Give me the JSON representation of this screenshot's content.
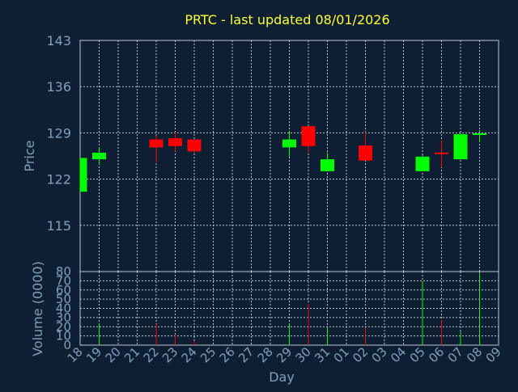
{
  "chart_data": [
    {
      "type": "candlestick",
      "title": "PRTC - last updated 08/01/2026",
      "ylabel": "Price",
      "ylim": [
        108,
        143
      ],
      "yticks": [
        115,
        122,
        129,
        136,
        143
      ],
      "grid": true,
      "colors": {
        "up": "#00ff00",
        "down": "#ff0000",
        "title": "#ffff33",
        "axis_text": "#7f9fbf",
        "background": "#0f1f33"
      },
      "categories": [
        "18",
        "19",
        "20",
        "21",
        "22",
        "23",
        "24",
        "25",
        "26",
        "27",
        "28",
        "29",
        "30",
        "31",
        "01",
        "02",
        "03",
        "04",
        "05",
        "06",
        "07",
        "08",
        "09"
      ],
      "candles": [
        {
          "day": "18",
          "open": 120.1,
          "high": 125.2,
          "low": 120.1,
          "close": 125.2
        },
        {
          "day": "19",
          "open": 125.0,
          "high": 126.8,
          "low": 124.2,
          "close": 126.0
        },
        {
          "day": "22",
          "open": 128.0,
          "high": 128.6,
          "low": 124.5,
          "close": 126.8
        },
        {
          "day": "23",
          "open": 128.2,
          "high": 129.1,
          "low": 126.2,
          "close": 127.0
        },
        {
          "day": "24",
          "open": 128.0,
          "high": 128.0,
          "low": 126.0,
          "close": 126.2
        },
        {
          "day": "29",
          "open": 126.8,
          "high": 129.2,
          "low": 125.4,
          "close": 128.0
        },
        {
          "day": "30",
          "open": 130.0,
          "high": 130.0,
          "low": 126.0,
          "close": 127.0
        },
        {
          "day": "31",
          "open": 123.2,
          "high": 126.0,
          "low": 123.2,
          "close": 125.0
        },
        {
          "day": "02",
          "open": 127.1,
          "high": 129.2,
          "low": 124.8,
          "close": 124.8
        },
        {
          "day": "05",
          "open": 123.2,
          "high": 125.6,
          "low": 123.2,
          "close": 125.4
        },
        {
          "day": "06",
          "open": 125.9,
          "high": 127.8,
          "low": 123.8,
          "close": 125.7
        },
        {
          "day": "07",
          "open": 125.0,
          "high": 129.0,
          "low": 125.0,
          "close": 128.8
        },
        {
          "day": "08",
          "open": 128.6,
          "high": 129.4,
          "low": 127.6,
          "close": 128.8
        }
      ]
    },
    {
      "type": "bar",
      "ylabel": "Volume (0000)",
      "xlabel": "Day",
      "ylim": [
        0,
        80
      ],
      "yticks": [
        0,
        10,
        20,
        30,
        40,
        50,
        60,
        70,
        80
      ],
      "grid": true,
      "categories": [
        "18",
        "19",
        "20",
        "21",
        "22",
        "23",
        "24",
        "25",
        "26",
        "27",
        "28",
        "29",
        "30",
        "31",
        "01",
        "02",
        "03",
        "04",
        "05",
        "06",
        "07",
        "08",
        "09"
      ],
      "bars": [
        {
          "day": "19",
          "value": 24,
          "direction": "up"
        },
        {
          "day": "22",
          "value": 23,
          "direction": "down"
        },
        {
          "day": "23",
          "value": 11,
          "direction": "down"
        },
        {
          "day": "24",
          "value": 4,
          "direction": "down"
        },
        {
          "day": "29",
          "value": 23,
          "direction": "up"
        },
        {
          "day": "30",
          "value": 45,
          "direction": "down"
        },
        {
          "day": "31",
          "value": 19,
          "direction": "up"
        },
        {
          "day": "02",
          "value": 19,
          "direction": "down"
        },
        {
          "day": "05",
          "value": 69,
          "direction": "up"
        },
        {
          "day": "06",
          "value": 27,
          "direction": "down"
        },
        {
          "day": "07",
          "value": 15,
          "direction": "up"
        },
        {
          "day": "08",
          "value": 78,
          "direction": "up"
        }
      ]
    }
  ]
}
